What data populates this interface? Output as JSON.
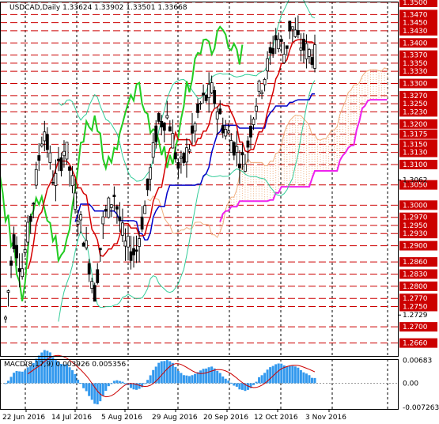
{
  "chart_data": {
    "type": "candlestick",
    "symbol": "USDCAD",
    "timeframe": "Daily",
    "ohlc_readout": [
      "1.33624",
      "1.33902",
      "1.33501",
      "1.33668"
    ],
    "x_ticks": [
      "22 Jun 2016",
      "14 Jul 2016",
      "5 Aug 2016",
      "29 Aug 2016",
      "20 Sep 2016",
      "12 Oct 2016",
      "3 Nov 2016"
    ],
    "price_axis": {
      "ylim": [
        1.263,
        1.35
      ],
      "plain_ticks": [
        "1.3062",
        "1.2729"
      ],
      "boxed_levels": [
        "1.3500",
        "1.3470",
        "1.3450",
        "1.3430",
        "1.3400",
        "1.3370",
        "1.3350",
        "1.3330",
        "1.3300",
        "1.3270",
        "1.3250",
        "1.3230",
        "1.3200",
        "1.3175",
        "1.3150",
        "1.3130",
        "1.3100",
        "1.3050",
        "1.3000",
        "1.2970",
        "1.2950",
        "1.2930",
        "1.2900",
        "1.2860",
        "1.2830",
        "1.2800",
        "1.2770",
        "1.2750",
        "1.2700",
        "1.2660"
      ]
    },
    "macd": {
      "label": "MACD(8,17,9)",
      "values_text": [
        "0.003926",
        "0.005356"
      ],
      "axis_ticks": [
        "0.00683",
        "0.00",
        "-0.007263"
      ],
      "ylim": [
        -0.0077,
        0.0072
      ]
    },
    "colors": {
      "bull": "#000000",
      "bear": "#000000",
      "tenkan": "#d40000",
      "kijun": "#0000c8",
      "chikou": "#22cc22",
      "bb": "#33cc99",
      "cloud": "#f0b080",
      "senkou": "#ee22ee",
      "level_line": "#cc0000",
      "label_bg": "#cc0000",
      "macd_hist": "#3399ee",
      "macd_signal": "#cc0000",
      "grid": "#000000"
    }
  }
}
